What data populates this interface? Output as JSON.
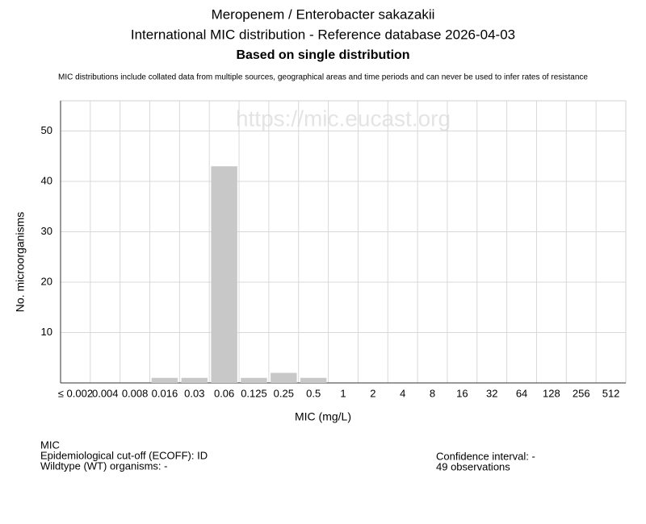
{
  "chart_data": {
    "type": "bar",
    "title": "Meropenem / Enterobacter sakazakii",
    "subtitle": "International MIC distribution - Reference database 2026-04-03",
    "subtitle2": "Based on single distribution",
    "note": "MIC distributions include collated data from multiple sources, geographical areas and time periods and can never be used to infer rates of resistance",
    "watermark": "https://mic.eucast.org",
    "x_label": "MIC (mg/L)",
    "y_label": "No. microorganisms",
    "categories": [
      "≤ 0.002",
      "0.004",
      "0.008",
      "0.016",
      "0.03",
      "0.06",
      "0.125",
      "0.25",
      "0.5",
      "1",
      "2",
      "4",
      "8",
      "16",
      "32",
      "64",
      "128",
      "256",
      "512"
    ],
    "values": [
      0,
      0,
      0,
      1,
      1,
      43,
      1,
      2,
      1,
      0,
      0,
      0,
      0,
      0,
      0,
      0,
      0,
      0,
      0
    ],
    "color": "#c8c8c8",
    "ylim": [
      0,
      56
    ],
    "yticks": [
      10,
      20,
      30,
      40,
      50
    ],
    "grid": true,
    "footer": {
      "left": [
        "MIC",
        "Epidemiological cut-off (ECOFF): ID",
        "Wildtype (WT) organisms:  -"
      ],
      "right": [
        "Confidence interval: -",
        "49 observations"
      ]
    }
  }
}
